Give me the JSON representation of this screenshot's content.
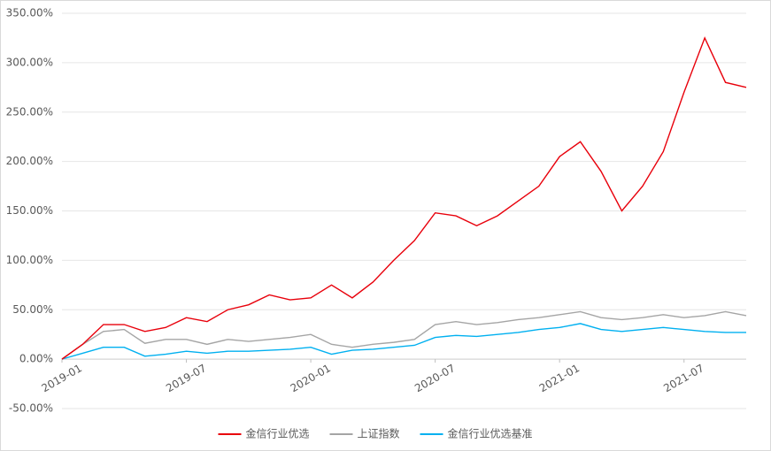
{
  "chart_data": {
    "type": "line",
    "x": [
      "2019-01",
      "2019-02",
      "2019-03",
      "2019-04",
      "2019-05",
      "2019-06",
      "2019-07",
      "2019-08",
      "2019-09",
      "2019-10",
      "2019-11",
      "2019-12",
      "2020-01",
      "2020-02",
      "2020-03",
      "2020-04",
      "2020-05",
      "2020-06",
      "2020-07",
      "2020-08",
      "2020-09",
      "2020-10",
      "2020-11",
      "2020-12",
      "2021-01",
      "2021-02",
      "2021-03",
      "2021-04",
      "2021-05",
      "2021-06",
      "2021-07",
      "2021-08",
      "2021-09",
      "2021-10"
    ],
    "series": [
      {
        "name": "金信行业优选",
        "color": "#e8000b",
        "values": [
          0,
          15,
          35,
          35,
          28,
          32,
          42,
          38,
          50,
          55,
          65,
          60,
          62,
          75,
          62,
          78,
          100,
          120,
          148,
          145,
          135,
          145,
          160,
          175,
          205,
          220,
          190,
          150,
          175,
          210,
          270,
          325,
          280,
          275
        ]
      },
      {
        "name": "上证指数",
        "color": "#a5a5a5",
        "values": [
          0,
          15,
          28,
          30,
          16,
          20,
          20,
          15,
          20,
          18,
          20,
          22,
          25,
          15,
          12,
          15,
          17,
          20,
          35,
          38,
          35,
          37,
          40,
          42,
          45,
          48,
          42,
          40,
          42,
          45,
          42,
          44,
          48,
          44
        ]
      },
      {
        "name": "金信行业优选基准",
        "color": "#00b0f0",
        "values": [
          0,
          6,
          12,
          12,
          3,
          5,
          8,
          6,
          8,
          8,
          9,
          10,
          12,
          5,
          9,
          10,
          12,
          14,
          22,
          24,
          23,
          25,
          27,
          30,
          32,
          36,
          30,
          28,
          30,
          32,
          30,
          28,
          27,
          27
        ]
      }
    ],
    "xticks": [
      "2019-01",
      "2019-07",
      "2020-01",
      "2020-07",
      "2021-01",
      "2021-07"
    ],
    "ylim": [
      -50,
      350
    ],
    "yticks": [
      {
        "value": -50,
        "label": "-50.00%"
      },
      {
        "value": 0,
        "label": "0.00%"
      },
      {
        "value": 50,
        "label": "50.00%"
      },
      {
        "value": 100,
        "label": "100.00%"
      },
      {
        "value": 150,
        "label": "150.00%"
      },
      {
        "value": 200,
        "label": "200.00%"
      },
      {
        "value": 250,
        "label": "250.00%"
      },
      {
        "value": 300,
        "label": "300.00%"
      },
      {
        "value": 350,
        "label": "350.00%"
      }
    ],
    "grid": true,
    "legend": "bottom"
  }
}
